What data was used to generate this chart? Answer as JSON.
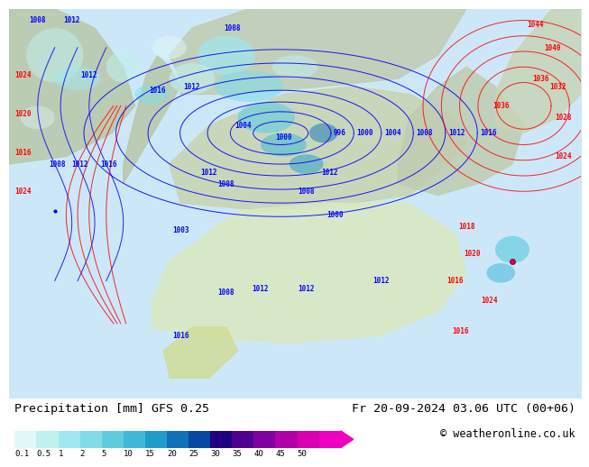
{
  "title_left": "Precipitation [mm] GFS 0.25",
  "title_right": "Fr 20-09-2024 03.06 UTC (00+06)",
  "copyright": "© weatheronline.co.uk",
  "colorbar_labels": [
    "0.1",
    "0.5",
    "1",
    "2",
    "5",
    "10",
    "15",
    "20",
    "25",
    "30",
    "35",
    "40",
    "45",
    "50"
  ],
  "colorbar_colors": [
    "#e0f8f8",
    "#c0f0f0",
    "#a0e8f0",
    "#80dce8",
    "#60cce0",
    "#40b8d8",
    "#209ccc",
    "#1070b8",
    "#0848a0",
    "#200080",
    "#500090",
    "#8000a0",
    "#b000a8",
    "#d800b0",
    "#f000c0"
  ],
  "bg_color": "#ffffff",
  "map_bg": "#cce8f8",
  "label_fontsize": 9,
  "title_fontsize": 9.5,
  "copyright_fontsize": 8.5
}
